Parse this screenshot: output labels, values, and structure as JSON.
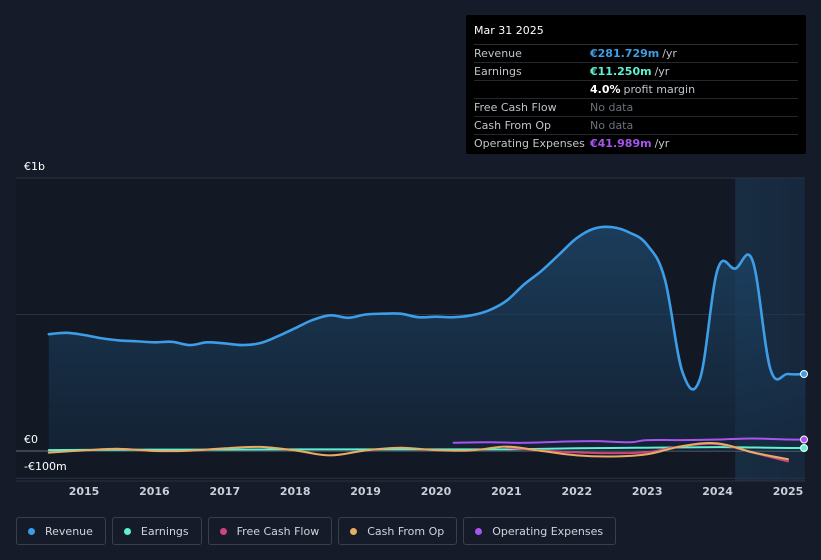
{
  "tooltip": {
    "date": "Mar 31 2025",
    "rows": [
      {
        "label": "Revenue",
        "value": "€281.729m",
        "unit": "/yr",
        "color": "#3d9de6"
      },
      {
        "label": "Earnings",
        "value": "€11.250m",
        "unit": "/yr",
        "color": "#5ff0d2"
      },
      {
        "label": "",
        "value": "4.0%",
        "unit": "profit margin",
        "color": "#ffffff"
      },
      {
        "label": "Free Cash Flow",
        "value": "No data",
        "unit": "",
        "color": ""
      },
      {
        "label": "Cash From Op",
        "value": "No data",
        "unit": "",
        "color": ""
      },
      {
        "label": "Operating Expenses",
        "value": "€41.989m",
        "unit": "/yr",
        "color": "#a854f0"
      }
    ]
  },
  "legend": [
    {
      "label": "Revenue",
      "color": "#3d9de6"
    },
    {
      "label": "Earnings",
      "color": "#5ff0d2"
    },
    {
      "label": "Free Cash Flow",
      "color": "#d1457f"
    },
    {
      "label": "Cash From Op",
      "color": "#e8ac63"
    },
    {
      "label": "Operating Expenses",
      "color": "#a854f0"
    }
  ],
  "chart_data": {
    "type": "area",
    "y_tick_labels": [
      "€1b",
      "€0",
      "-€100m"
    ],
    "y_ticks": [
      1000,
      0,
      -100
    ],
    "ylim": [
      -100,
      1000
    ],
    "xlim": [
      2014.5,
      2025.25
    ],
    "x_tick_labels": [
      "2015",
      "2016",
      "2017",
      "2018",
      "2019",
      "2020",
      "2021",
      "2022",
      "2023",
      "2024",
      "2025"
    ],
    "x_ticks": [
      2015,
      2016,
      2017,
      2018,
      2019,
      2020,
      2021,
      2022,
      2023,
      2024,
      2025
    ],
    "grid": true,
    "legend_position": "bottom",
    "highlight_range": [
      2024.25,
      2025.25
    ],
    "series": [
      {
        "name": "Revenue",
        "color": "#3d9de6",
        "fill": true,
        "x": [
          2014.5,
          2014.75,
          2015.0,
          2015.25,
          2015.5,
          2015.75,
          2016.0,
          2016.25,
          2016.5,
          2016.75,
          2017.0,
          2017.25,
          2017.5,
          2017.75,
          2018.0,
          2018.25,
          2018.5,
          2018.75,
          2019.0,
          2019.25,
          2019.5,
          2019.75,
          2020.0,
          2020.25,
          2020.5,
          2020.75,
          2021.0,
          2021.25,
          2021.5,
          2021.75,
          2022.0,
          2022.25,
          2022.5,
          2022.75,
          2023.0,
          2023.25,
          2023.5,
          2023.75,
          2024.0,
          2024.25,
          2024.5,
          2024.75,
          2025.0,
          2025.25
        ],
        "values": [
          428,
          433,
          425,
          413,
          405,
          402,
          398,
          400,
          388,
          398,
          394,
          388,
          395,
          420,
          450,
          480,
          497,
          488,
          500,
          503,
          503,
          490,
          492,
          490,
          497,
          515,
          550,
          610,
          660,
          720,
          780,
          815,
          820,
          800,
          755,
          630,
          290,
          265,
          665,
          668,
          695,
          300,
          282,
          282
        ]
      },
      {
        "name": "Earnings",
        "color": "#5ff0d2",
        "fill": false,
        "x": [
          2014.5,
          2015.0,
          2016.0,
          2017.0,
          2018.0,
          2019.0,
          2020.0,
          2021.0,
          2022.0,
          2023.0,
          2024.0,
          2024.5,
          2025.0,
          2025.25
        ],
        "values": [
          3,
          4,
          5,
          5,
          6,
          6,
          6,
          6,
          10,
          12,
          14,
          13,
          11,
          11
        ]
      },
      {
        "name": "Free Cash Flow",
        "color": "#d1457f",
        "fill": false,
        "x": [
          2021.0,
          2021.5,
          2022.0,
          2022.5,
          2023.0,
          2023.5,
          2024.0,
          2024.5,
          2025.0
        ],
        "values": [
          12,
          2,
          -5,
          -8,
          -4,
          18,
          25,
          -6,
          -38
        ]
      },
      {
        "name": "Cash From Op",
        "color": "#e8ac63",
        "fill": false,
        "x": [
          2014.5,
          2015.0,
          2015.5,
          2016.0,
          2016.5,
          2017.0,
          2017.5,
          2018.0,
          2018.5,
          2019.0,
          2019.5,
          2020.0,
          2020.5,
          2021.0,
          2021.5,
          2022.0,
          2022.5,
          2023.0,
          2023.5,
          2024.0,
          2024.5,
          2025.0
        ],
        "values": [
          -6,
          2,
          8,
          0,
          1,
          10,
          15,
          2,
          -16,
          2,
          12,
          3,
          2,
          16,
          0,
          -16,
          -20,
          -12,
          18,
          28,
          -5,
          -30
        ]
      },
      {
        "name": "Operating Expenses",
        "color": "#a854f0",
        "fill": false,
        "x": [
          2020.25,
          2020.75,
          2021.25,
          2021.75,
          2022.25,
          2022.75,
          2023.0,
          2023.5,
          2024.0,
          2024.5,
          2025.0,
          2025.25
        ],
        "values": [
          30,
          32,
          30,
          34,
          36,
          32,
          40,
          40,
          42,
          46,
          42,
          42
        ]
      }
    ]
  }
}
